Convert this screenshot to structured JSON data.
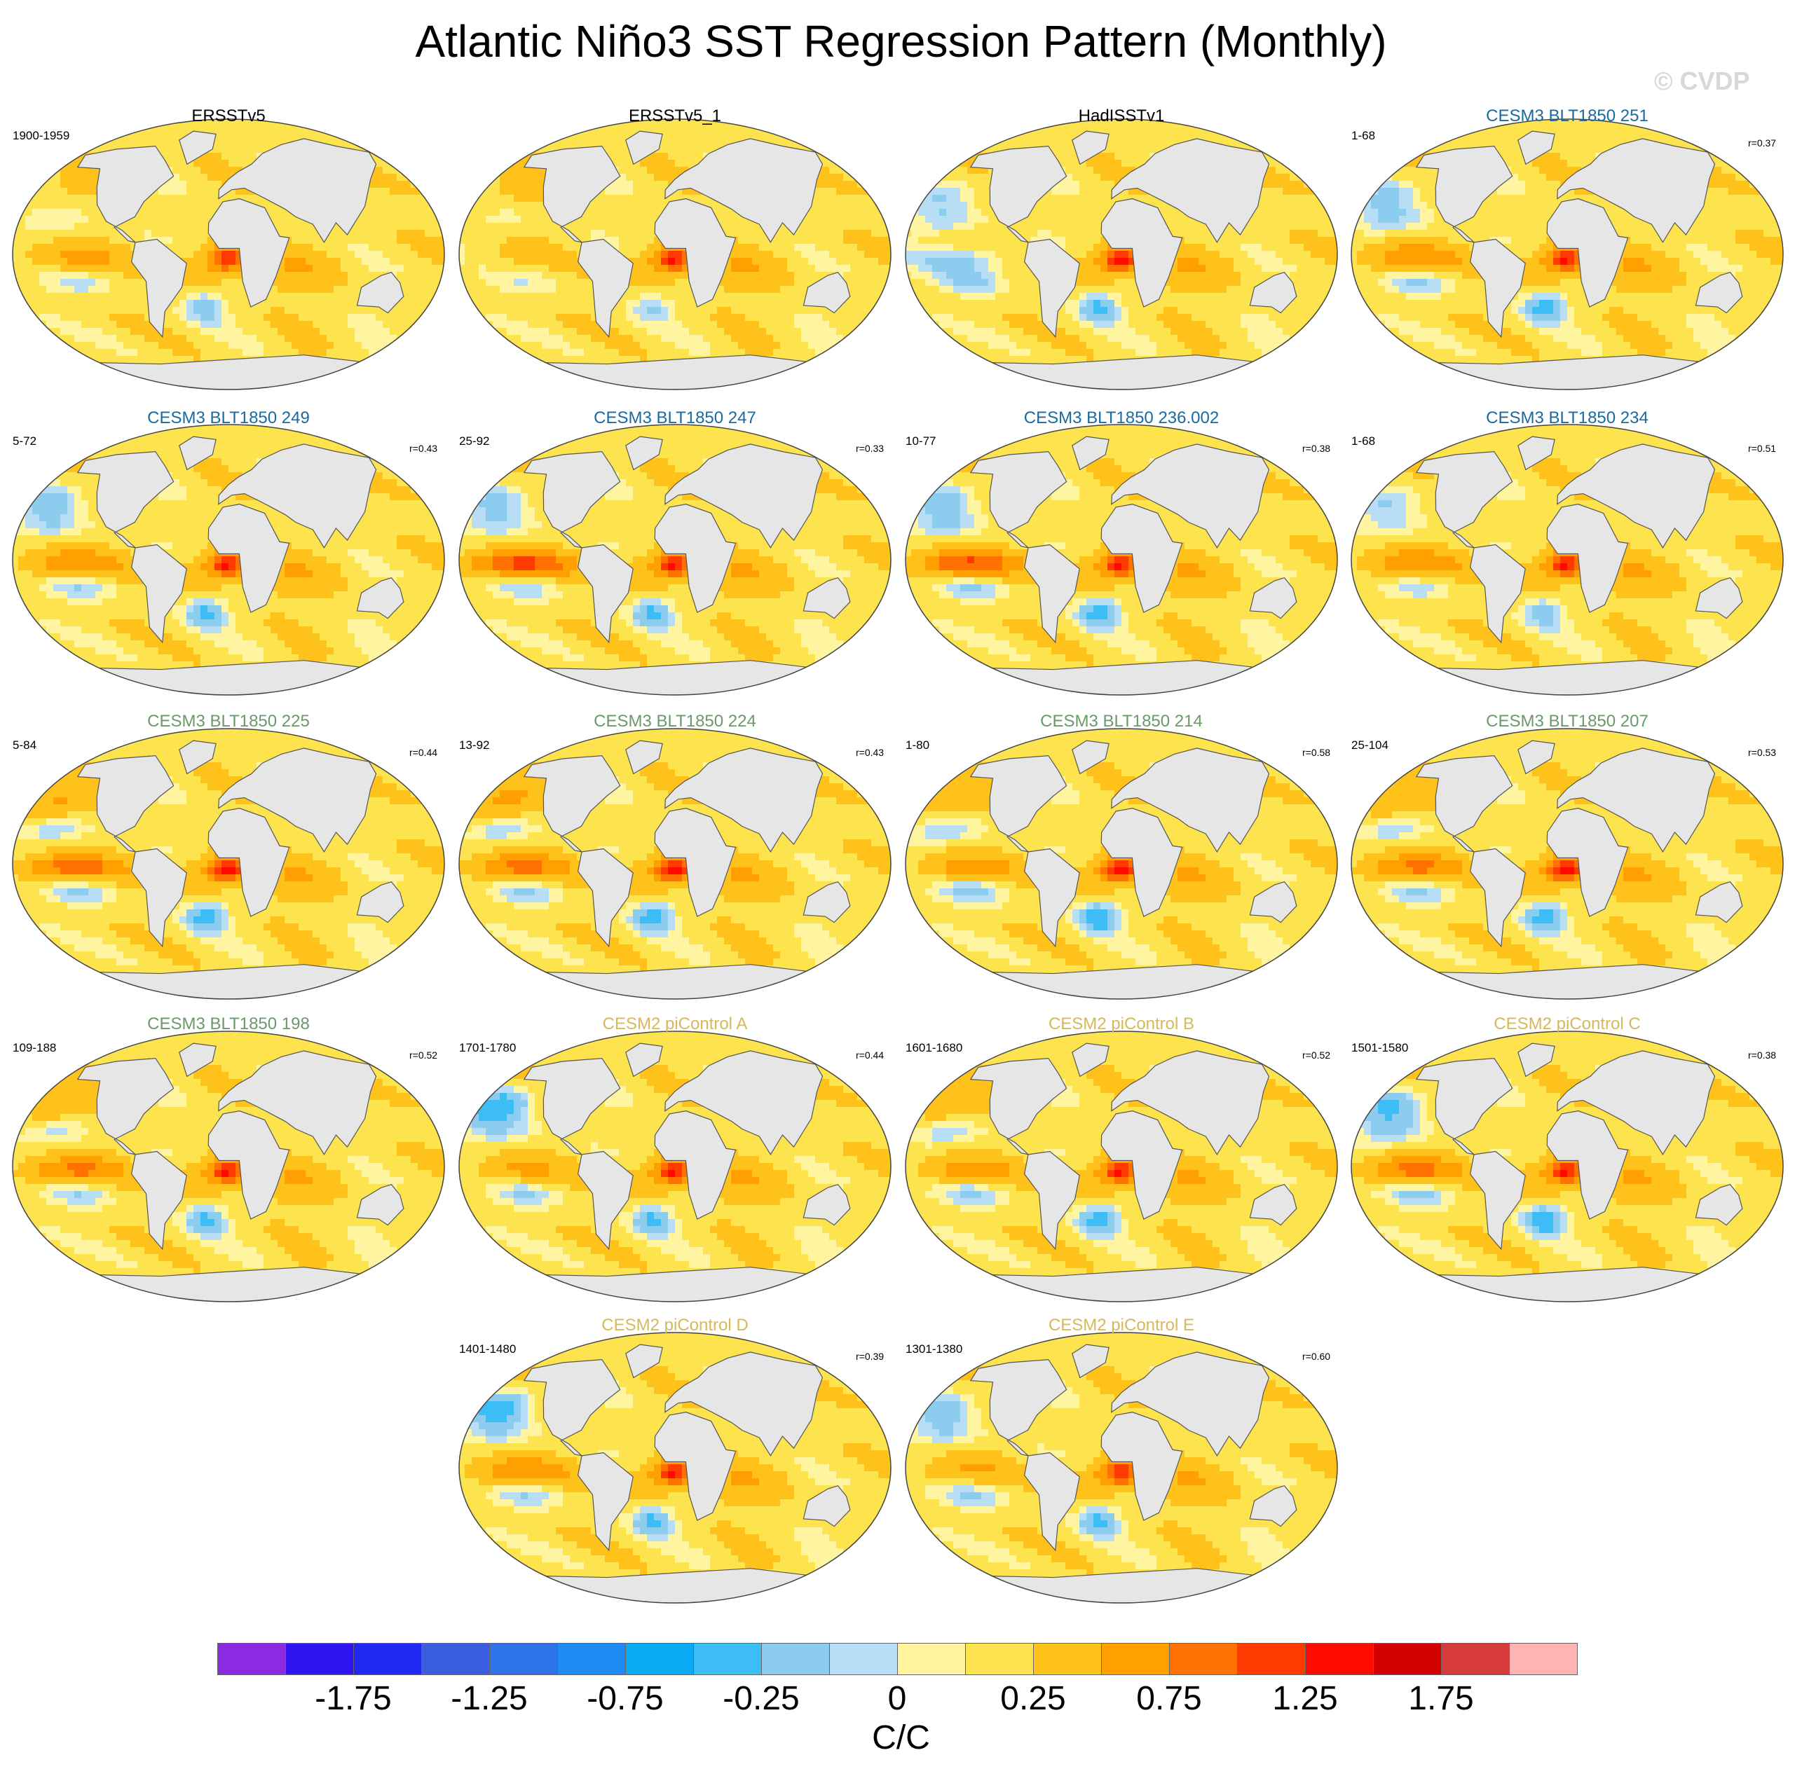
{
  "title": "Atlantic Niño3 SST Regression Pattern (Monthly)",
  "watermark": "© CVDP",
  "colors": {
    "obs_title": "#000000",
    "cesm3_blue": "#1a6aa0",
    "cesm3_green": "#6a9a6a",
    "cesm2_gold": "#d7b85a",
    "land": "#e6e6e6",
    "coast": "#555555"
  },
  "panels": [
    {
      "title": "ERSSTv5",
      "group": "obs",
      "years": "1900-1959",
      "corr": "",
      "east_peak": 0.9,
      "pac_peak": 0.35,
      "sa_cool": -0.35,
      "np_cool": 0.05
    },
    {
      "title": "ERSSTv5_1",
      "group": "obs",
      "years": "",
      "corr": "",
      "east_peak": 1.0,
      "pac_peak": 0.1,
      "sa_cool": -0.25,
      "np_cool": 0.1
    },
    {
      "title": "HadISSTv1",
      "group": "obs",
      "years": "",
      "corr": "",
      "east_peak": 1.1,
      "pac_peak": -0.3,
      "sa_cool": -0.45,
      "np_cool": -0.25
    },
    {
      "title": "CESM3 BLT1850 251",
      "group": "cesm3_blue",
      "years": "1-68",
      "corr": "r=0.37",
      "east_peak": 1.0,
      "pac_peak": 0.55,
      "sa_cool": -0.5,
      "np_cool": -0.3
    },
    {
      "title": "CESM3 BLT1850 249",
      "group": "cesm3_blue",
      "years": "5-72",
      "corr": "r=0.43",
      "east_peak": 1.0,
      "pac_peak": 0.55,
      "sa_cool": -0.45,
      "np_cool": -0.35
    },
    {
      "title": "CESM3 BLT1850 247",
      "group": "cesm3_blue",
      "years": "25-92",
      "corr": "r=0.33",
      "east_peak": 1.0,
      "pac_peak": 0.9,
      "sa_cool": -0.45,
      "np_cool": -0.3
    },
    {
      "title": "CESM3 BLT1850 236.002",
      "group": "cesm3_blue",
      "years": "10-77",
      "corr": "r=0.38",
      "east_peak": 1.0,
      "pac_peak": 0.85,
      "sa_cool": -0.5,
      "np_cool": -0.35
    },
    {
      "title": "CESM3 BLT1850 234",
      "group": "cesm3_blue",
      "years": "1-68",
      "corr": "r=0.51",
      "east_peak": 1.0,
      "pac_peak": 0.55,
      "sa_cool": -0.35,
      "np_cool": -0.25
    },
    {
      "title": "CESM3 BLT1850 225",
      "group": "cesm3_green",
      "years": "5-84",
      "corr": "r=0.44",
      "east_peak": 1.1,
      "pac_peak": 0.7,
      "sa_cool": -0.5,
      "np_cool": 0.35
    },
    {
      "title": "CESM3 BLT1850 224",
      "group": "cesm3_green",
      "years": "13-92",
      "corr": "r=0.43",
      "east_peak": 1.1,
      "pac_peak": 0.65,
      "sa_cool": -0.5,
      "np_cool": 0.4
    },
    {
      "title": "CESM3 BLT1850 214",
      "group": "cesm3_green",
      "years": "1-80",
      "corr": "r=0.58",
      "east_peak": 1.1,
      "pac_peak": 0.45,
      "sa_cool": -0.55,
      "np_cool": 0.3
    },
    {
      "title": "CESM3 BLT1850 207",
      "group": "cesm3_green",
      "years": "25-104",
      "corr": "r=0.53",
      "east_peak": 1.1,
      "pac_peak": 0.6,
      "sa_cool": -0.5,
      "np_cool": 0.3
    },
    {
      "title": "CESM3 BLT1850 198",
      "group": "cesm3_green",
      "years": "109-188",
      "corr": "r=0.52",
      "east_peak": 1.0,
      "pac_peak": 0.6,
      "sa_cool": -0.45,
      "np_cool": 0.3
    },
    {
      "title": "CESM2 piControl A",
      "group": "cesm2",
      "years": "1701-1780",
      "corr": "r=0.44",
      "east_peak": 1.0,
      "pac_peak": 0.35,
      "sa_cool": -0.45,
      "np_cool": -0.6
    },
    {
      "title": "CESM2 piControl B",
      "group": "cesm2",
      "years": "1601-1680",
      "corr": "r=0.52",
      "east_peak": 1.0,
      "pac_peak": 0.45,
      "sa_cool": -0.5,
      "np_cool": 0.3
    },
    {
      "title": "CESM2 piControl C",
      "group": "cesm2",
      "years": "1501-1580",
      "corr": "r=0.38",
      "east_peak": 1.0,
      "pac_peak": 0.65,
      "sa_cool": -0.55,
      "np_cool": -0.45
    },
    {
      "title": "CESM2 piControl D",
      "group": "cesm2",
      "years": "1401-1480",
      "corr": "r=0.39",
      "east_peak": 1.0,
      "pac_peak": 0.55,
      "sa_cool": -0.45,
      "np_cool": -0.55
    },
    {
      "title": "CESM2 piControl E",
      "group": "cesm2",
      "years": "1301-1380",
      "corr": "r=0.60",
      "east_peak": 0.95,
      "pac_peak": 0.3,
      "sa_cool": -0.45,
      "np_cool": -0.35
    }
  ],
  "chart_data": {
    "type": "heatmap",
    "title": "Atlantic Niño3 SST Regression Pattern (Monthly)",
    "units": "C/C",
    "colorbar": {
      "levels": [
        -2,
        -1.75,
        -1.5,
        -1.25,
        -1,
        -0.75,
        -0.5,
        -0.25,
        -0.1,
        0,
        0.1,
        0.25,
        0.5,
        0.75,
        1,
        1.25,
        1.5,
        1.75,
        2
      ],
      "tick_labels": [
        "-1.75",
        "-1.25",
        "-0.75",
        "-0.25",
        "0",
        "0.25",
        "0.75",
        "1.25",
        "1.75"
      ],
      "colors": [
        "#8a2be2",
        "#3014f0",
        "#1e28f0",
        "#3a5ee0",
        "#2f73e8",
        "#1f8cf6",
        "#0aaaf4",
        "#3cbdf5",
        "#8ccdef",
        "#b8def5",
        "#fff5a0",
        "#fde44e",
        "#ffc21a",
        "#ff9f00",
        "#ff7100",
        "#ff3a00",
        "#ff0a00",
        "#d40000",
        "#d93b3b",
        "#ffb3b3"
      ]
    },
    "panels": [
      {
        "name": "ERSSTv5",
        "period": "1900-1959",
        "r": null
      },
      {
        "name": "ERSSTv5_1",
        "period": null,
        "r": null
      },
      {
        "name": "HadISSTv1",
        "period": null,
        "r": null
      },
      {
        "name": "CESM3 BLT1850 251",
        "period": "1-68",
        "r": 0.37
      },
      {
        "name": "CESM3 BLT1850 249",
        "period": "5-72",
        "r": 0.43
      },
      {
        "name": "CESM3 BLT1850 247",
        "period": "25-92",
        "r": 0.33
      },
      {
        "name": "CESM3 BLT1850 236.002",
        "period": "10-77",
        "r": 0.38
      },
      {
        "name": "CESM3 BLT1850 234",
        "period": "1-68",
        "r": 0.51
      },
      {
        "name": "CESM3 BLT1850 225",
        "period": "5-84",
        "r": 0.44
      },
      {
        "name": "CESM3 BLT1850 224",
        "period": "13-92",
        "r": 0.43
      },
      {
        "name": "CESM3 BLT1850 214",
        "period": "1-80",
        "r": 0.58
      },
      {
        "name": "CESM3 BLT1850 207",
        "period": "25-104",
        "r": 0.53
      },
      {
        "name": "CESM3 BLT1850 198",
        "period": "109-188",
        "r": 0.52
      },
      {
        "name": "CESM2 piControl A",
        "period": "1701-1780",
        "r": 0.44
      },
      {
        "name": "CESM2 piControl B",
        "period": "1601-1680",
        "r": 0.52
      },
      {
        "name": "CESM2 piControl C",
        "period": "1501-1580",
        "r": 0.38
      },
      {
        "name": "CESM2 piControl D",
        "period": "1401-1480",
        "r": 0.39
      },
      {
        "name": "CESM2 piControl E",
        "period": "1301-1380",
        "r": 0.6
      }
    ]
  }
}
